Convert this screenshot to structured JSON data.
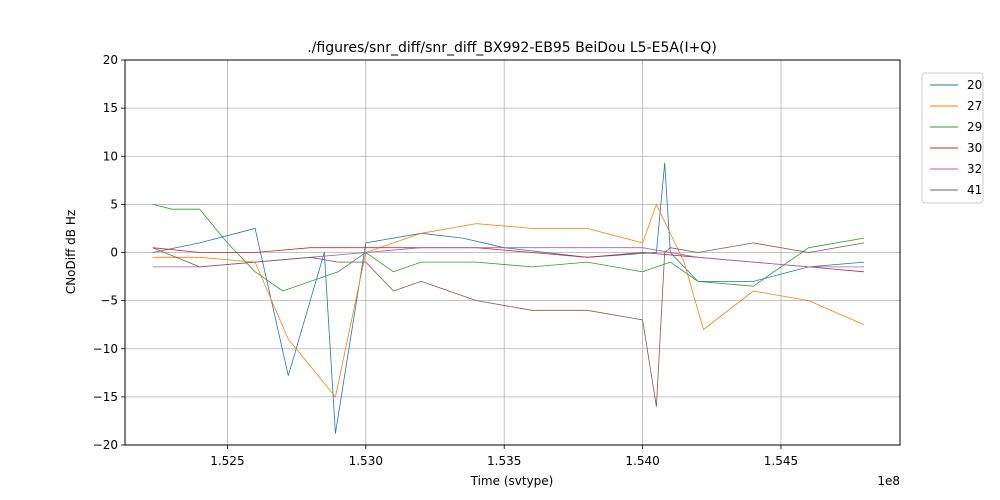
{
  "chart_data": {
    "type": "line",
    "title": "./figures/snr_diff/snr_diff_BX992-EB95 BeiDou  L5-E5A(I+Q)",
    "xlabel": "Time (svtype)",
    "ylabel": "CNoDiff dB Hz",
    "x_offset_label": "1e8",
    "xlim": [
      152130000,
      154930000
    ],
    "ylim": [
      -20,
      20
    ],
    "x_ticks": [
      152500000,
      153000000,
      153500000,
      154000000,
      154500000
    ],
    "x_tick_labels": [
      "1.525",
      "1.530",
      "1.535",
      "1.540",
      "1.545"
    ],
    "y_ticks": [
      -20,
      -15,
      -10,
      -5,
      0,
      5,
      10,
      15,
      20
    ],
    "y_tick_labels": [
      "−20",
      "−15",
      "−10",
      "−5",
      "0",
      "5",
      "10",
      "15",
      "20"
    ],
    "grid": true,
    "legend_position": "upper-right-outside",
    "series": [
      {
        "name": "20",
        "color": "#1f77b4",
        "x": [
          152230000,
          152400000,
          152600000,
          152720000,
          152850000,
          152890000,
          153000000,
          153200000,
          153350000,
          153500000,
          153800000,
          154050000,
          154080000,
          154100000,
          154200000,
          154400000,
          154600000,
          154800000
        ],
        "y": [
          0,
          1,
          2.5,
          -12.8,
          0,
          -18.8,
          1,
          2,
          1.5,
          0.5,
          -0.5,
          0,
          9.3,
          0,
          -3,
          -3,
          -1.5,
          -1
        ]
      },
      {
        "name": "27",
        "color": "#ff7f0e",
        "x": [
          152230000,
          152400000,
          152600000,
          152720000,
          152890000,
          153000000,
          153200000,
          153400000,
          153600000,
          153800000,
          154000000,
          154050000,
          154150000,
          154220000,
          154400000,
          154600000,
          154800000
        ],
        "y": [
          -0.5,
          -0.5,
          -1,
          -9,
          -15,
          0,
          2,
          3,
          2.5,
          2.5,
          1,
          5,
          -1,
          -8,
          -4,
          -5,
          -7.5
        ]
      },
      {
        "name": "29",
        "color": "#2ca02c",
        "x": [
          152230000,
          152300000,
          152400000,
          152500000,
          152600000,
          152700000,
          152800000,
          152900000,
          153000000,
          153100000,
          153200000,
          153400000,
          153600000,
          153800000,
          154000000,
          154100000,
          154200000,
          154400000,
          154600000,
          154800000
        ],
        "y": [
          5,
          4.5,
          4.5,
          1,
          -2,
          -4,
          -3,
          -2,
          0,
          -2,
          -1,
          -1,
          -1.5,
          -1,
          -2,
          -1,
          -3,
          -3.5,
          0.5,
          1.5
        ]
      },
      {
        "name": "30",
        "color": "#d62728",
        "x": [
          152230000,
          152400000,
          152600000,
          152800000,
          153000000,
          153200000,
          153400000,
          153600000,
          153800000,
          154000000,
          154200000,
          154400000,
          154600000,
          154800000
        ],
        "y": [
          0.5,
          0,
          0,
          0.5,
          0.5,
          0.5,
          0.5,
          0,
          -0.5,
          0,
          -0.5,
          -1,
          -1.5,
          -2
        ]
      },
      {
        "name": "32",
        "color": "#9467bd",
        "x": [
          152230000,
          152400000,
          152600000,
          152800000,
          153000000,
          153200000,
          153400000,
          153600000,
          153800000,
          154000000,
          154200000,
          154400000,
          154600000,
          154800000
        ],
        "y": [
          -1.5,
          -1.5,
          -1,
          -0.5,
          0,
          0.5,
          0.5,
          0.5,
          0.5,
          0.5,
          -0.5,
          -1,
          -1.5,
          -1.5
        ]
      },
      {
        "name": "41",
        "color": "#8c564b",
        "x": [
          152230000,
          152400000,
          152600000,
          152800000,
          152900000,
          153000000,
          153100000,
          153200000,
          153300000,
          153400000,
          153600000,
          153800000,
          154000000,
          154050000,
          154080000,
          154100000,
          154200000,
          154400000,
          154600000,
          154800000
        ],
        "y": [
          0.5,
          -1.5,
          -1,
          -0.5,
          -1,
          -1,
          -4,
          -3,
          -4,
          -5,
          -6,
          -6,
          -7,
          -16,
          0,
          0.5,
          0,
          1,
          0,
          1
        ]
      }
    ]
  }
}
